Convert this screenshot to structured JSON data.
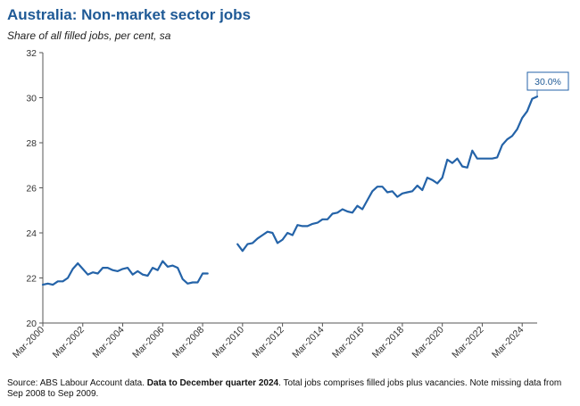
{
  "header": {
    "title": "Australia: Non-market sector jobs",
    "subtitle": "Share of all filled jobs, per cent, sa"
  },
  "footer": {
    "source_prefix": "Source: ABS Labour Account data. ",
    "source_bold": "Data to December quarter 2024",
    "source_suffix": ". Total jobs comprises filled jobs plus vacancies. Note missing data from Sep 2008 to Sep 2009."
  },
  "chart_data": {
    "type": "line",
    "title": "Australia: Non-market sector jobs",
    "subtitle": "Share of all filled jobs, per cent, sa",
    "xlabel": "",
    "ylabel": "",
    "ylim": [
      20,
      32
    ],
    "yticks": [
      20,
      22,
      24,
      26,
      28,
      30,
      32
    ],
    "xlim": [
      "Mar-2000",
      "Dec-2024"
    ],
    "xticks": [
      "Mar-2000",
      "Mar-2002",
      "Mar-2004",
      "Mar-2006",
      "Mar-2008",
      "Mar-2010",
      "Mar-2012",
      "Mar-2014",
      "Mar-2016",
      "Mar-2018",
      "Mar-2020",
      "Mar-2022",
      "Mar-2024"
    ],
    "grid": false,
    "legend": "none",
    "line_color": "#2463a8",
    "annotation": "30.0%",
    "series": [
      {
        "segments": [
          {
            "x": [
              "Mar-2000",
              "Jun-2000",
              "Sep-2000",
              "Dec-2000",
              "Mar-2001",
              "Jun-2001",
              "Sep-2001",
              "Dec-2001",
              "Mar-2002",
              "Jun-2002",
              "Sep-2002",
              "Dec-2002",
              "Mar-2003",
              "Jun-2003",
              "Sep-2003",
              "Dec-2003",
              "Mar-2004",
              "Jun-2004",
              "Sep-2004",
              "Dec-2004",
              "Mar-2005",
              "Jun-2005",
              "Sep-2005",
              "Dec-2005",
              "Mar-2006",
              "Jun-2006",
              "Sep-2006",
              "Dec-2006",
              "Mar-2007",
              "Jun-2007",
              "Sep-2007",
              "Dec-2007",
              "Mar-2008",
              "Jun-2008"
            ],
            "values": [
              21.7,
              21.75,
              21.7,
              21.85,
              21.85,
              22.0,
              22.4,
              22.65,
              22.4,
              22.15,
              22.25,
              22.2,
              22.45,
              22.45,
              22.35,
              22.3,
              22.4,
              22.45,
              22.15,
              22.3,
              22.15,
              22.1,
              22.45,
              22.35,
              22.75,
              22.5,
              22.55,
              22.45,
              21.95,
              21.75,
              21.8,
              21.8,
              22.2,
              22.2
            ]
          },
          {
            "x": [
              "Dec-2009",
              "Mar-2010",
              "Jun-2010",
              "Sep-2010",
              "Dec-2010",
              "Mar-2011",
              "Jun-2011",
              "Sep-2011",
              "Dec-2011",
              "Mar-2012",
              "Jun-2012",
              "Sep-2012",
              "Dec-2012",
              "Mar-2013",
              "Jun-2013",
              "Sep-2013",
              "Dec-2013",
              "Mar-2014",
              "Jun-2014",
              "Sep-2014",
              "Dec-2014",
              "Mar-2015",
              "Jun-2015",
              "Sep-2015",
              "Dec-2015",
              "Mar-2016",
              "Jun-2016",
              "Sep-2016",
              "Dec-2016",
              "Mar-2017",
              "Jun-2017",
              "Sep-2017",
              "Dec-2017",
              "Mar-2018",
              "Jun-2018",
              "Sep-2018",
              "Dec-2018",
              "Mar-2019",
              "Jun-2019",
              "Sep-2019",
              "Dec-2019",
              "Mar-2020",
              "Jun-2020",
              "Sep-2020",
              "Dec-2020",
              "Mar-2021",
              "Jun-2021",
              "Sep-2021",
              "Dec-2021",
              "Mar-2022",
              "Jun-2022",
              "Sep-2022",
              "Dec-2022",
              "Mar-2023",
              "Jun-2023",
              "Sep-2023",
              "Dec-2023",
              "Mar-2024",
              "Jun-2024",
              "Sep-2024",
              "Dec-2024"
            ],
            "values": [
              23.5,
              23.2,
              23.5,
              23.55,
              23.75,
              23.9,
              24.05,
              24.0,
              23.55,
              23.7,
              24.0,
              23.9,
              24.35,
              24.3,
              24.3,
              24.4,
              24.45,
              24.6,
              24.6,
              24.85,
              24.9,
              25.05,
              24.95,
              24.9,
              25.2,
              25.05,
              25.45,
              25.85,
              26.05,
              26.05,
              25.8,
              25.85,
              25.6,
              25.75,
              25.8,
              25.85,
              26.1,
              25.9,
              26.45,
              26.35,
              26.2,
              26.45,
              27.25,
              27.1,
              27.3,
              26.95,
              26.9,
              27.65,
              27.3,
              27.3,
              27.3,
              27.3,
              27.35,
              27.9,
              28.15,
              28.3,
              28.6,
              29.1,
              29.4,
              29.95,
              30.05
            ]
          }
        ]
      }
    ]
  }
}
